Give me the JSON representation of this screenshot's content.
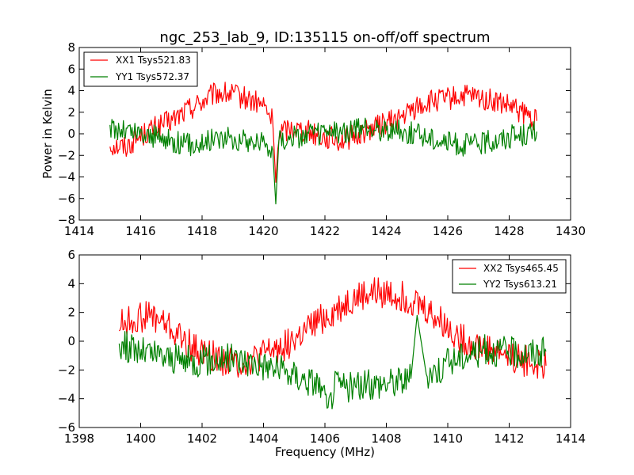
{
  "chart_data": [
    {
      "type": "line",
      "title": "ngc_253_lab_9, ID:135115 on-off/off spectrum",
      "xlabel": "",
      "ylabel": "Power in Kelvin",
      "xlim": [
        1414,
        1430
      ],
      "ylim": [
        -8,
        8
      ],
      "xticks": [
        1414,
        1416,
        1418,
        1420,
        1422,
        1424,
        1426,
        1428,
        1430
      ],
      "yticks": [
        -8,
        -6,
        -4,
        -2,
        0,
        2,
        4,
        6,
        8
      ],
      "legend_position": "top-left",
      "series": [
        {
          "name": "XX1 Tsys521.83",
          "color": "#ff0000",
          "x": [
            1415.0,
            1415.5,
            1416.0,
            1416.5,
            1417.0,
            1417.5,
            1418.0,
            1418.5,
            1419.0,
            1419.5,
            1420.0,
            1420.3,
            1420.4,
            1420.5,
            1421.0,
            1421.5,
            1422.0,
            1422.5,
            1423.0,
            1423.5,
            1424.0,
            1424.5,
            1425.0,
            1425.5,
            1426.0,
            1426.5,
            1427.0,
            1427.5,
            1428.0,
            1428.5,
            1428.9
          ],
          "y": [
            -1.0,
            -1.2,
            -0.2,
            0.6,
            1.2,
            2.2,
            3.0,
            3.8,
            3.6,
            3.2,
            2.6,
            1.2,
            -4.5,
            0.2,
            0.6,
            0.2,
            -0.3,
            -0.6,
            -0.2,
            0.5,
            1.0,
            1.5,
            2.5,
            3.0,
            3.2,
            3.5,
            3.3,
            3.0,
            2.5,
            1.8,
            1.2
          ]
        },
        {
          "name": "YY1 Tsys572.37",
          "color": "#008000",
          "x": [
            1415.0,
            1415.5,
            1416.0,
            1416.5,
            1417.0,
            1417.5,
            1418.0,
            1418.5,
            1419.0,
            1419.5,
            1420.0,
            1420.3,
            1420.4,
            1420.5,
            1421.0,
            1421.5,
            1422.0,
            1422.5,
            1423.0,
            1423.5,
            1424.0,
            1424.5,
            1425.0,
            1425.5,
            1426.0,
            1426.5,
            1427.0,
            1427.5,
            1428.0,
            1428.5,
            1428.9
          ],
          "y": [
            0.5,
            0.3,
            0.0,
            -0.3,
            -0.6,
            -1.0,
            -0.8,
            -0.3,
            -0.5,
            -0.7,
            -0.8,
            -1.5,
            -6.5,
            -0.5,
            -0.3,
            -0.1,
            0.0,
            0.1,
            0.3,
            0.5,
            0.4,
            0.2,
            0.0,
            -0.4,
            -0.8,
            -1.0,
            -0.9,
            -0.6,
            -0.3,
            0.0,
            0.2
          ]
        }
      ]
    },
    {
      "type": "line",
      "title": "",
      "xlabel": "Frequency (MHz)",
      "ylabel": "",
      "xlim": [
        1398,
        1414
      ],
      "ylim": [
        -6,
        6
      ],
      "xticks": [
        1398,
        1400,
        1402,
        1404,
        1406,
        1408,
        1410,
        1412,
        1414
      ],
      "yticks": [
        -6,
        -4,
        -2,
        0,
        2,
        4,
        6
      ],
      "legend_position": "top-right",
      "series": [
        {
          "name": "XX2 Tsys465.45",
          "color": "#ff0000",
          "x": [
            1399.3,
            1399.8,
            1400.3,
            1400.8,
            1401.3,
            1401.8,
            1402.3,
            1402.8,
            1403.3,
            1403.8,
            1404.3,
            1404.8,
            1405.3,
            1405.8,
            1406.3,
            1406.8,
            1407.3,
            1407.8,
            1408.3,
            1408.8,
            1409.3,
            1409.8,
            1410.3,
            1410.8,
            1411.3,
            1411.8,
            1412.3,
            1412.8,
            1413.2
          ],
          "y": [
            1.2,
            1.5,
            1.8,
            1.2,
            0.2,
            -0.6,
            -1.0,
            -1.4,
            -1.5,
            -1.2,
            -0.6,
            -0.2,
            0.5,
            1.4,
            2.0,
            2.8,
            3.2,
            3.4,
            3.2,
            2.9,
            2.2,
            1.3,
            0.4,
            -0.2,
            -0.5,
            -0.8,
            -1.2,
            -1.6,
            -1.7
          ]
        },
        {
          "name": "YY2 Tsys613.21",
          "color": "#008000",
          "x": [
            1399.3,
            1399.8,
            1400.3,
            1400.8,
            1401.3,
            1401.8,
            1402.3,
            1402.8,
            1403.3,
            1403.8,
            1404.3,
            1404.8,
            1405.3,
            1405.8,
            1406.1,
            1406.3,
            1406.8,
            1407.3,
            1407.8,
            1408.3,
            1408.8,
            1409.0,
            1409.3,
            1409.8,
            1410.3,
            1410.8,
            1411.3,
            1411.8,
            1412.3,
            1412.8,
            1413.2
          ],
          "y": [
            -0.2,
            -0.6,
            -0.9,
            -1.1,
            -1.3,
            -1.4,
            -1.3,
            -1.2,
            -1.3,
            -1.5,
            -1.8,
            -2.2,
            -2.6,
            -2.9,
            -5.0,
            -3.0,
            -3.2,
            -3.1,
            -2.9,
            -2.8,
            -2.6,
            1.8,
            -2.3,
            -1.8,
            -1.2,
            -0.8,
            -0.6,
            -0.7,
            -0.8,
            -0.8,
            -0.7
          ]
        }
      ]
    }
  ]
}
